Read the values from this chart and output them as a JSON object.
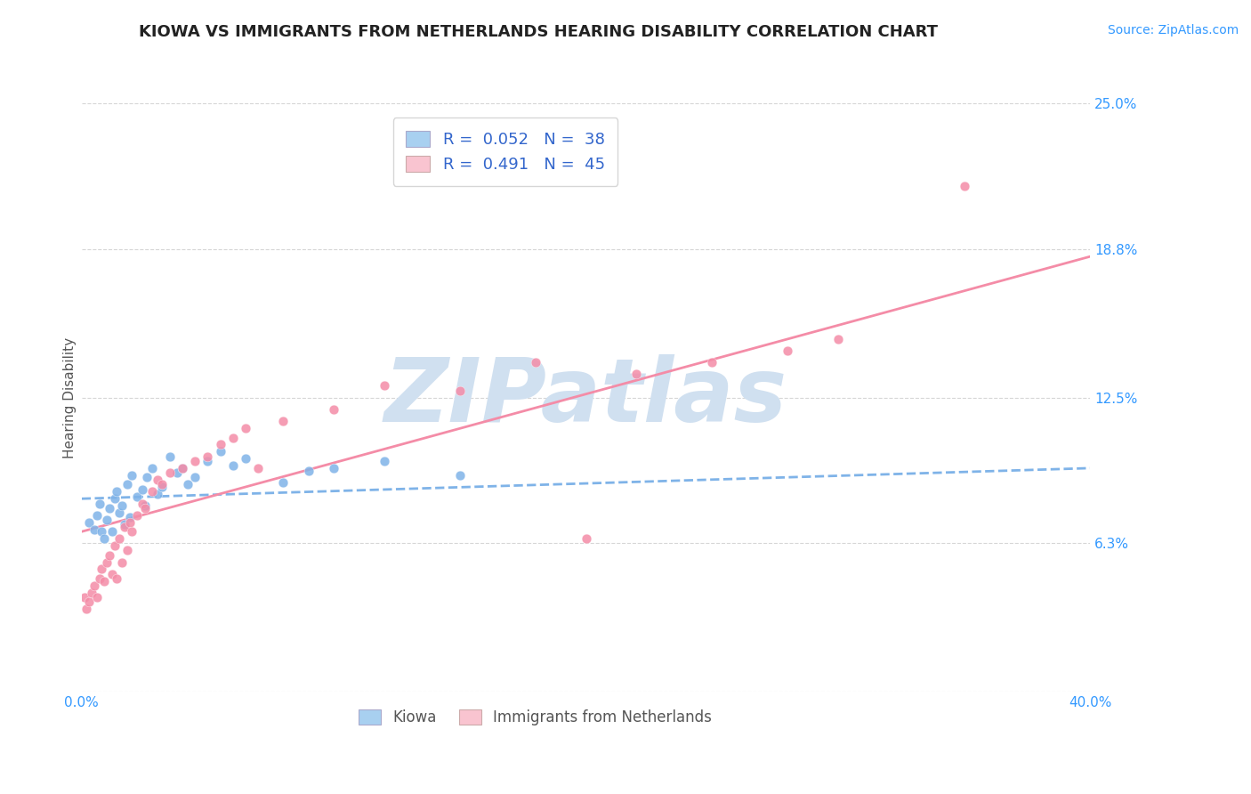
{
  "title": "KIOWA VS IMMIGRANTS FROM NETHERLANDS HEARING DISABILITY CORRELATION CHART",
  "source_text": "Source: ZipAtlas.com",
  "xlabel": "",
  "ylabel": "Hearing Disability",
  "xlim": [
    0.0,
    0.4
  ],
  "ylim": [
    0.0,
    0.25
  ],
  "xticks": [
    0.0,
    0.1,
    0.2,
    0.3,
    0.4
  ],
  "xtick_labels": [
    "0.0%",
    "",
    "",
    "",
    "40.0%"
  ],
  "yticks": [
    0.0,
    0.063,
    0.125,
    0.188,
    0.25
  ],
  "ytick_labels": [
    "",
    "6.3%",
    "12.5%",
    "18.8%",
    "25.0%"
  ],
  "background_color": "#ffffff",
  "grid_color": "#cccccc",
  "watermark": "ZIPatlas",
  "watermark_color": "#d0e0f0",
  "series": [
    {
      "name": "Kiowa",
      "R": 0.052,
      "N": 38,
      "color": "#7fb3e8",
      "marker_color": "#7fb3e8",
      "scatter_x": [
        0.003,
        0.005,
        0.006,
        0.007,
        0.008,
        0.009,
        0.01,
        0.011,
        0.012,
        0.013,
        0.014,
        0.015,
        0.016,
        0.017,
        0.018,
        0.019,
        0.02,
        0.022,
        0.024,
        0.025,
        0.026,
        0.028,
        0.03,
        0.032,
        0.035,
        0.038,
        0.04,
        0.042,
        0.045,
        0.05,
        0.055,
        0.06,
        0.065,
        0.08,
        0.09,
        0.1,
        0.12,
        0.15
      ],
      "scatter_y": [
        0.072,
        0.069,
        0.075,
        0.08,
        0.068,
        0.065,
        0.073,
        0.078,
        0.068,
        0.082,
        0.085,
        0.076,
        0.079,
        0.071,
        0.088,
        0.074,
        0.092,
        0.083,
        0.086,
        0.079,
        0.091,
        0.095,
        0.084,
        0.087,
        0.1,
        0.093,
        0.095,
        0.088,
        0.091,
        0.098,
        0.102,
        0.096,
        0.099,
        0.089,
        0.094,
        0.095,
        0.098,
        0.092
      ],
      "trend_x": [
        0.0,
        0.4
      ],
      "trend_y": [
        0.082,
        0.095
      ],
      "trend_style": "dashed"
    },
    {
      "name": "Immigrants from Netherlands",
      "R": 0.491,
      "N": 45,
      "color": "#f48ca7",
      "marker_color": "#f48ca7",
      "scatter_x": [
        0.001,
        0.002,
        0.003,
        0.004,
        0.005,
        0.006,
        0.007,
        0.008,
        0.009,
        0.01,
        0.011,
        0.012,
        0.013,
        0.014,
        0.015,
        0.016,
        0.017,
        0.018,
        0.019,
        0.02,
        0.022,
        0.024,
        0.025,
        0.028,
        0.03,
        0.032,
        0.035,
        0.04,
        0.045,
        0.05,
        0.055,
        0.06,
        0.065,
        0.07,
        0.08,
        0.1,
        0.12,
        0.15,
        0.18,
        0.2,
        0.22,
        0.25,
        0.28,
        0.3,
        0.35
      ],
      "scatter_y": [
        0.04,
        0.035,
        0.038,
        0.042,
        0.045,
        0.04,
        0.048,
        0.052,
        0.047,
        0.055,
        0.058,
        0.05,
        0.062,
        0.048,
        0.065,
        0.055,
        0.07,
        0.06,
        0.072,
        0.068,
        0.075,
        0.08,
        0.078,
        0.085,
        0.09,
        0.088,
        0.093,
        0.095,
        0.098,
        0.1,
        0.105,
        0.108,
        0.112,
        0.095,
        0.115,
        0.12,
        0.13,
        0.128,
        0.14,
        0.065,
        0.135,
        0.14,
        0.145,
        0.15,
        0.215
      ],
      "trend_x": [
        0.0,
        0.4
      ],
      "trend_y": [
        0.068,
        0.185
      ],
      "trend_style": "solid"
    }
  ],
  "legend": {
    "kiowa_color": "#a8d0f0",
    "netherlands_color": "#f9c4d0",
    "text_color": "#3366cc",
    "r_label_color": "#000000",
    "n_label_color": "#3366cc"
  },
  "title_fontsize": 13,
  "axis_label_fontsize": 11,
  "tick_fontsize": 11,
  "legend_fontsize": 13
}
